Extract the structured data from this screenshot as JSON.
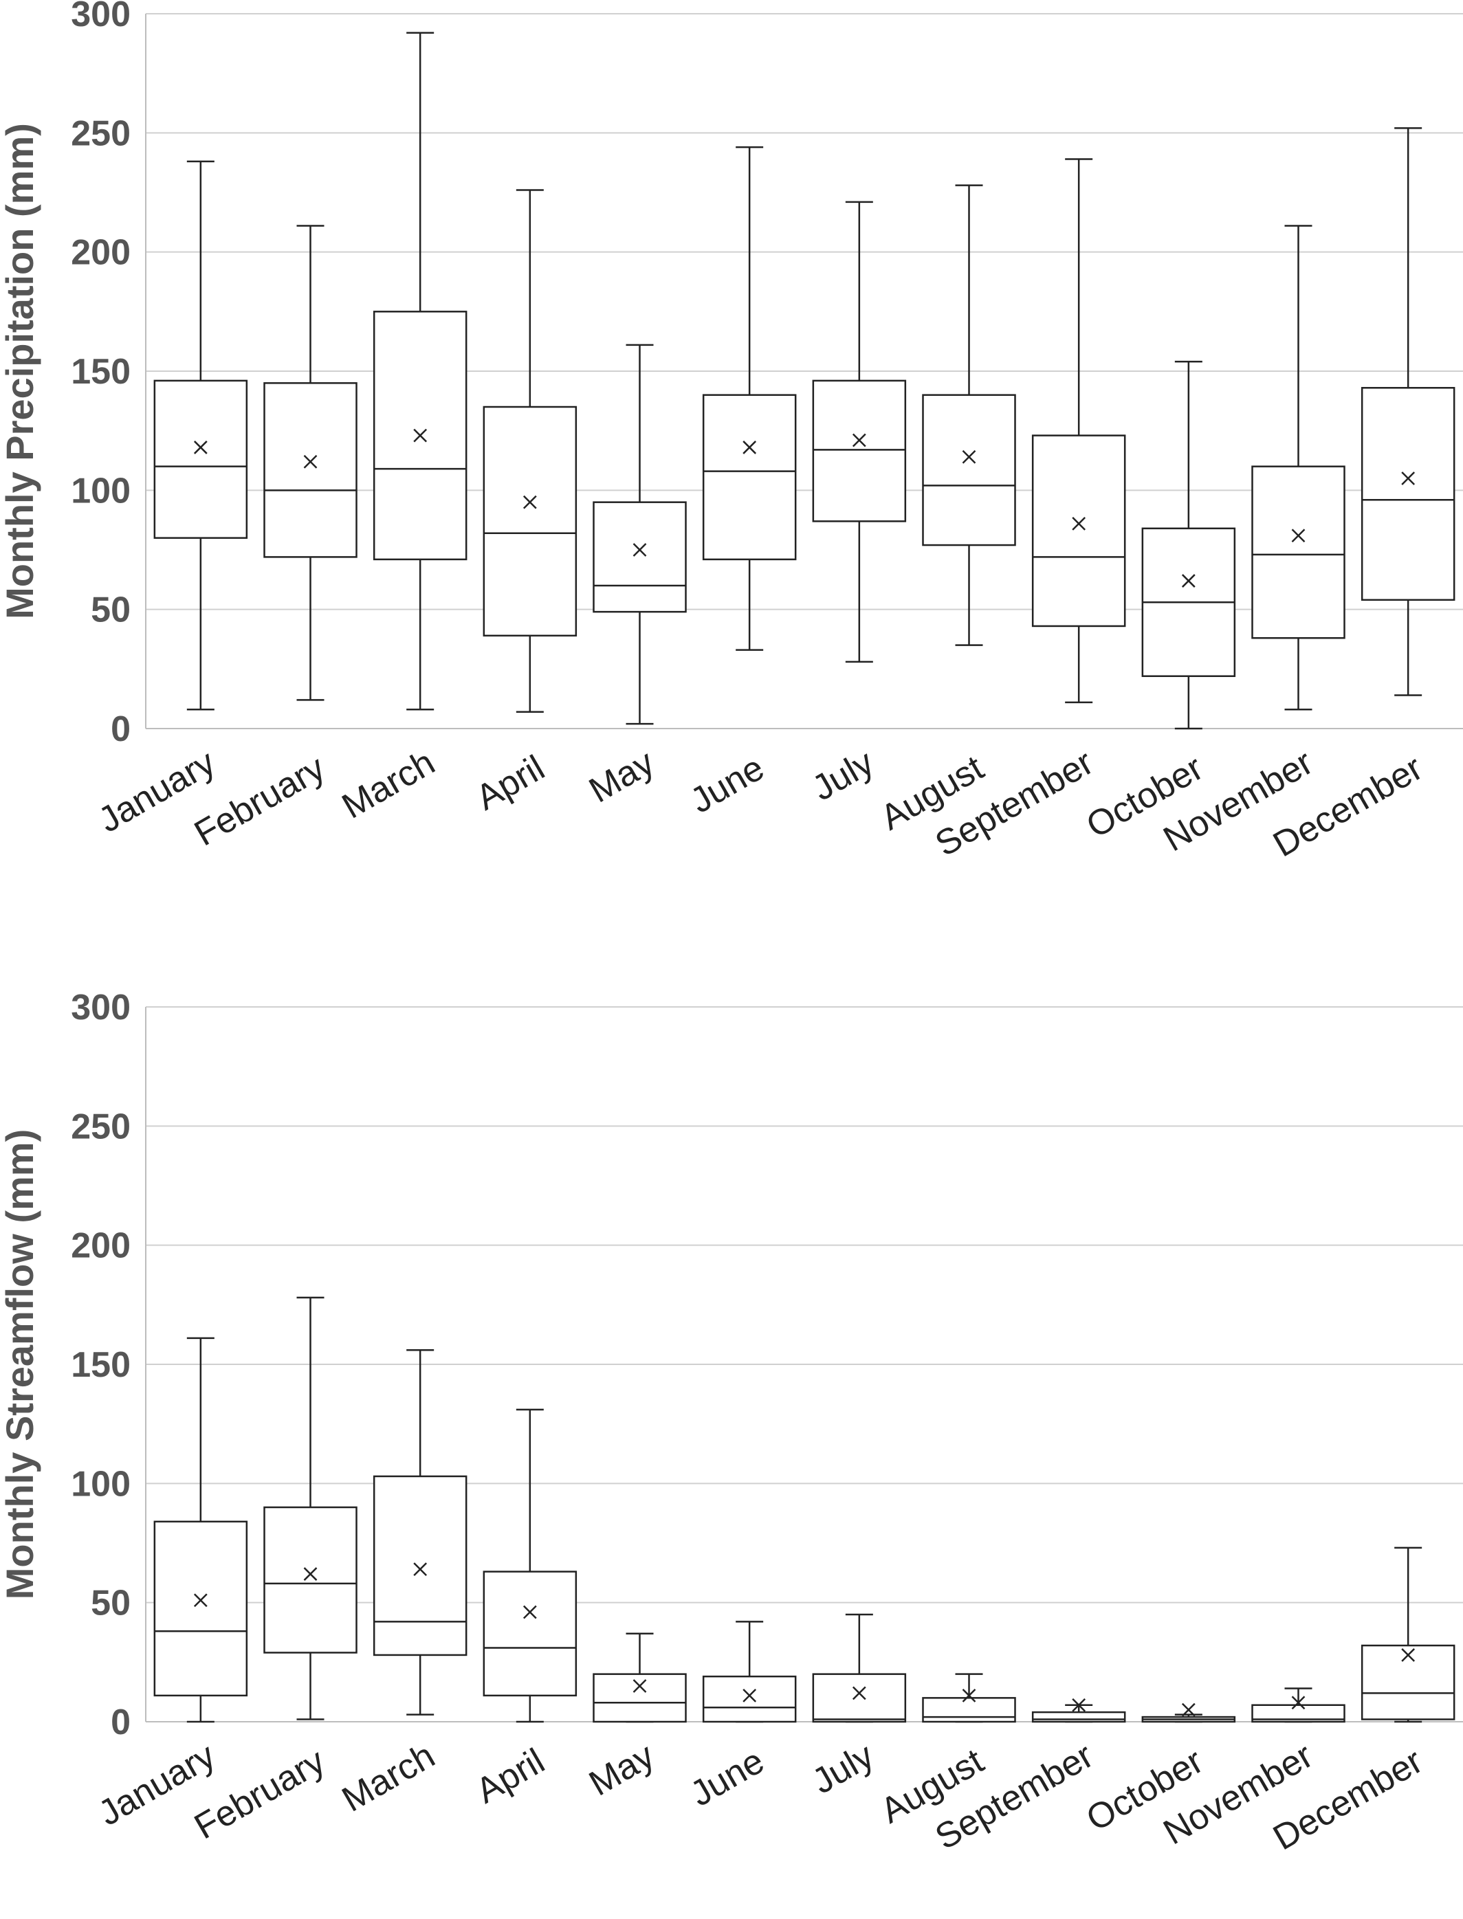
{
  "chart_data": [
    {
      "type": "box",
      "title": "",
      "xlabel": "",
      "ylabel": "Monthly Precipitation (mm)",
      "ylim": [
        0,
        300
      ],
      "yticks": [
        0,
        50,
        100,
        150,
        200,
        250,
        300
      ],
      "grid": true,
      "categories": [
        "January",
        "February",
        "March",
        "April",
        "May",
        "June",
        "July",
        "August",
        "September",
        "October",
        "November",
        "December"
      ],
      "boxes": [
        {
          "min": 8,
          "q1": 80,
          "median": 110,
          "q3": 146,
          "max": 238,
          "mean": 118
        },
        {
          "min": 12,
          "q1": 72,
          "median": 100,
          "q3": 145,
          "max": 211,
          "mean": 112
        },
        {
          "min": 8,
          "q1": 71,
          "median": 109,
          "q3": 175,
          "max": 292,
          "mean": 123
        },
        {
          "min": 7,
          "q1": 39,
          "median": 82,
          "q3": 135,
          "max": 226,
          "mean": 95
        },
        {
          "min": 2,
          "q1": 49,
          "median": 60,
          "q3": 95,
          "max": 161,
          "mean": 75
        },
        {
          "min": 33,
          "q1": 71,
          "median": 108,
          "q3": 140,
          "max": 244,
          "mean": 118
        },
        {
          "min": 28,
          "q1": 87,
          "median": 117,
          "q3": 146,
          "max": 221,
          "mean": 121
        },
        {
          "min": 35,
          "q1": 77,
          "median": 102,
          "q3": 140,
          "max": 228,
          "mean": 114
        },
        {
          "min": 11,
          "q1": 43,
          "median": 72,
          "q3": 123,
          "max": 239,
          "mean": 86
        },
        {
          "min": 0,
          "q1": 22,
          "median": 53,
          "q3": 84,
          "max": 154,
          "mean": 62
        },
        {
          "min": 8,
          "q1": 38,
          "median": 73,
          "q3": 110,
          "max": 211,
          "mean": 81
        },
        {
          "min": 14,
          "q1": 54,
          "median": 96,
          "q3": 143,
          "max": 252,
          "mean": 105
        }
      ]
    },
    {
      "type": "box",
      "title": "",
      "xlabel": "",
      "ylabel": "Monthly Streamflow (mm)",
      "ylim": [
        0,
        300
      ],
      "yticks": [
        0,
        50,
        100,
        150,
        200,
        250,
        300
      ],
      "grid": true,
      "categories": [
        "January",
        "February",
        "March",
        "April",
        "May",
        "June",
        "July",
        "August",
        "September",
        "October",
        "November",
        "December"
      ],
      "boxes": [
        {
          "min": 0,
          "q1": 11,
          "median": 38,
          "q3": 84,
          "max": 161,
          "mean": 51
        },
        {
          "min": 1,
          "q1": 29,
          "median": 58,
          "q3": 90,
          "max": 178,
          "mean": 62
        },
        {
          "min": 3,
          "q1": 28,
          "median": 42,
          "q3": 103,
          "max": 156,
          "mean": 64
        },
        {
          "min": 0,
          "q1": 11,
          "median": 31,
          "q3": 63,
          "max": 131,
          "mean": 46
        },
        {
          "min": 0,
          "q1": 0,
          "median": 8,
          "q3": 20,
          "max": 37,
          "mean": 15
        },
        {
          "min": 0,
          "q1": 0,
          "median": 6,
          "q3": 19,
          "max": 42,
          "mean": 11
        },
        {
          "min": 0,
          "q1": 0,
          "median": 1,
          "q3": 20,
          "max": 45,
          "mean": 12
        },
        {
          "min": 0,
          "q1": 0,
          "median": 2,
          "q3": 10,
          "max": 20,
          "mean": 11
        },
        {
          "min": 0,
          "q1": 0,
          "median": 1,
          "q3": 4,
          "max": 7,
          "mean": 7
        },
        {
          "min": 0,
          "q1": 0,
          "median": 1,
          "q3": 2,
          "max": 3,
          "mean": 5
        },
        {
          "min": 0,
          "q1": 0,
          "median": 1,
          "q3": 7,
          "max": 14,
          "mean": 8
        },
        {
          "min": 0,
          "q1": 1,
          "median": 12,
          "q3": 32,
          "max": 73,
          "mean": 28
        }
      ]
    }
  ]
}
